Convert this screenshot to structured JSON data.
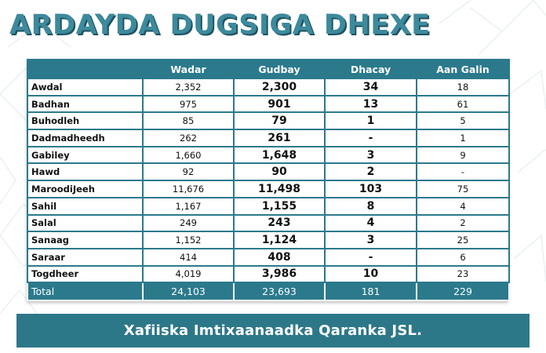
{
  "title": "ARDAYDA DUGSIGA DHEXE",
  "colors": {
    "title": "#3d8a9c",
    "title_shadow": "#1f5362",
    "table_header": "#2b7a8c",
    "footer_banner": "#2d7888"
  },
  "table": {
    "headers": [
      "",
      "Wadar",
      "Gudbay",
      "Dhacay",
      "Aan Galin"
    ],
    "rows": [
      [
        "Awdal",
        "2,352",
        "2,300",
        "34",
        "18"
      ],
      [
        "Badhan",
        "975",
        "901",
        "13",
        "61"
      ],
      [
        "Buhodleh",
        "85",
        "79",
        "1",
        "5"
      ],
      [
        "Dadmadheedh",
        "262",
        "261",
        "-",
        "1"
      ],
      [
        "Gabiley",
        "1,660",
        "1,648",
        "3",
        "9"
      ],
      [
        "Hawd",
        "92",
        "90",
        "2",
        "-"
      ],
      [
        "MaroodiJeeh",
        "11,676",
        "11,498",
        "103",
        "75"
      ],
      [
        "Sahil",
        "1,167",
        "1,155",
        "8",
        "4"
      ],
      [
        "Salal",
        "249",
        "243",
        "4",
        "2"
      ],
      [
        "Sanaag",
        "1,152",
        "1,124",
        "3",
        "25"
      ],
      [
        "Saraar",
        "414",
        "408",
        "-",
        "6"
      ],
      [
        "Togdheer",
        "4,019",
        "3,986",
        "10",
        "23"
      ]
    ],
    "total": [
      "Total",
      "24,103",
      "23,693",
      "181",
      "229"
    ]
  },
  "footer": "Xafiiska Imtixaanaadka Qaranka JSL."
}
